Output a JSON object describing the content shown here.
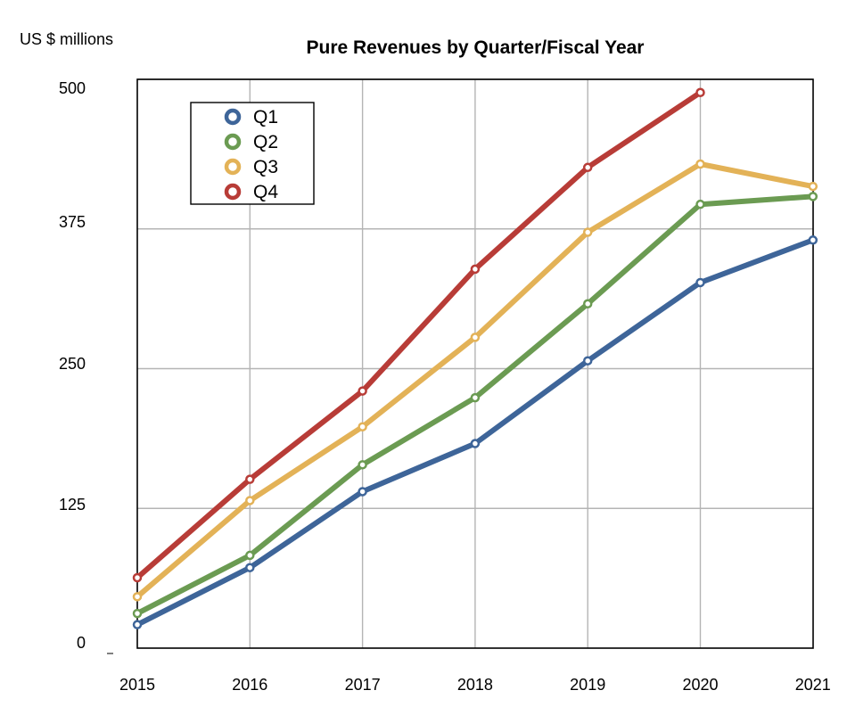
{
  "chart_data": {
    "type": "line",
    "title": "Pure Revenues by Quarter/Fiscal Year",
    "ylabel": "US $ millions",
    "xlabel": "",
    "x": [
      "2015",
      "2016",
      "2017",
      "2018",
      "2019",
      "2020",
      "2021"
    ],
    "yticks": [
      "0",
      "125",
      "250",
      "375",
      "500"
    ],
    "ylim": [
      0,
      500
    ],
    "grid": true,
    "legend_position": "top-left",
    "series": [
      {
        "name": "Q1",
        "color": "#3e6599",
        "values": [
          21,
          72,
          140,
          183,
          257,
          327,
          365
        ]
      },
      {
        "name": "Q2",
        "color": "#6b9b52",
        "values": [
          31,
          83,
          164,
          224,
          308,
          397,
          404
        ]
      },
      {
        "name": "Q3",
        "color": "#e3b257",
        "values": [
          46,
          132,
          198,
          278,
          372,
          433,
          413
        ]
      },
      {
        "name": "Q4",
        "color": "#b83c37",
        "values": [
          63,
          151,
          230,
          339,
          430,
          497,
          null
        ]
      }
    ]
  }
}
